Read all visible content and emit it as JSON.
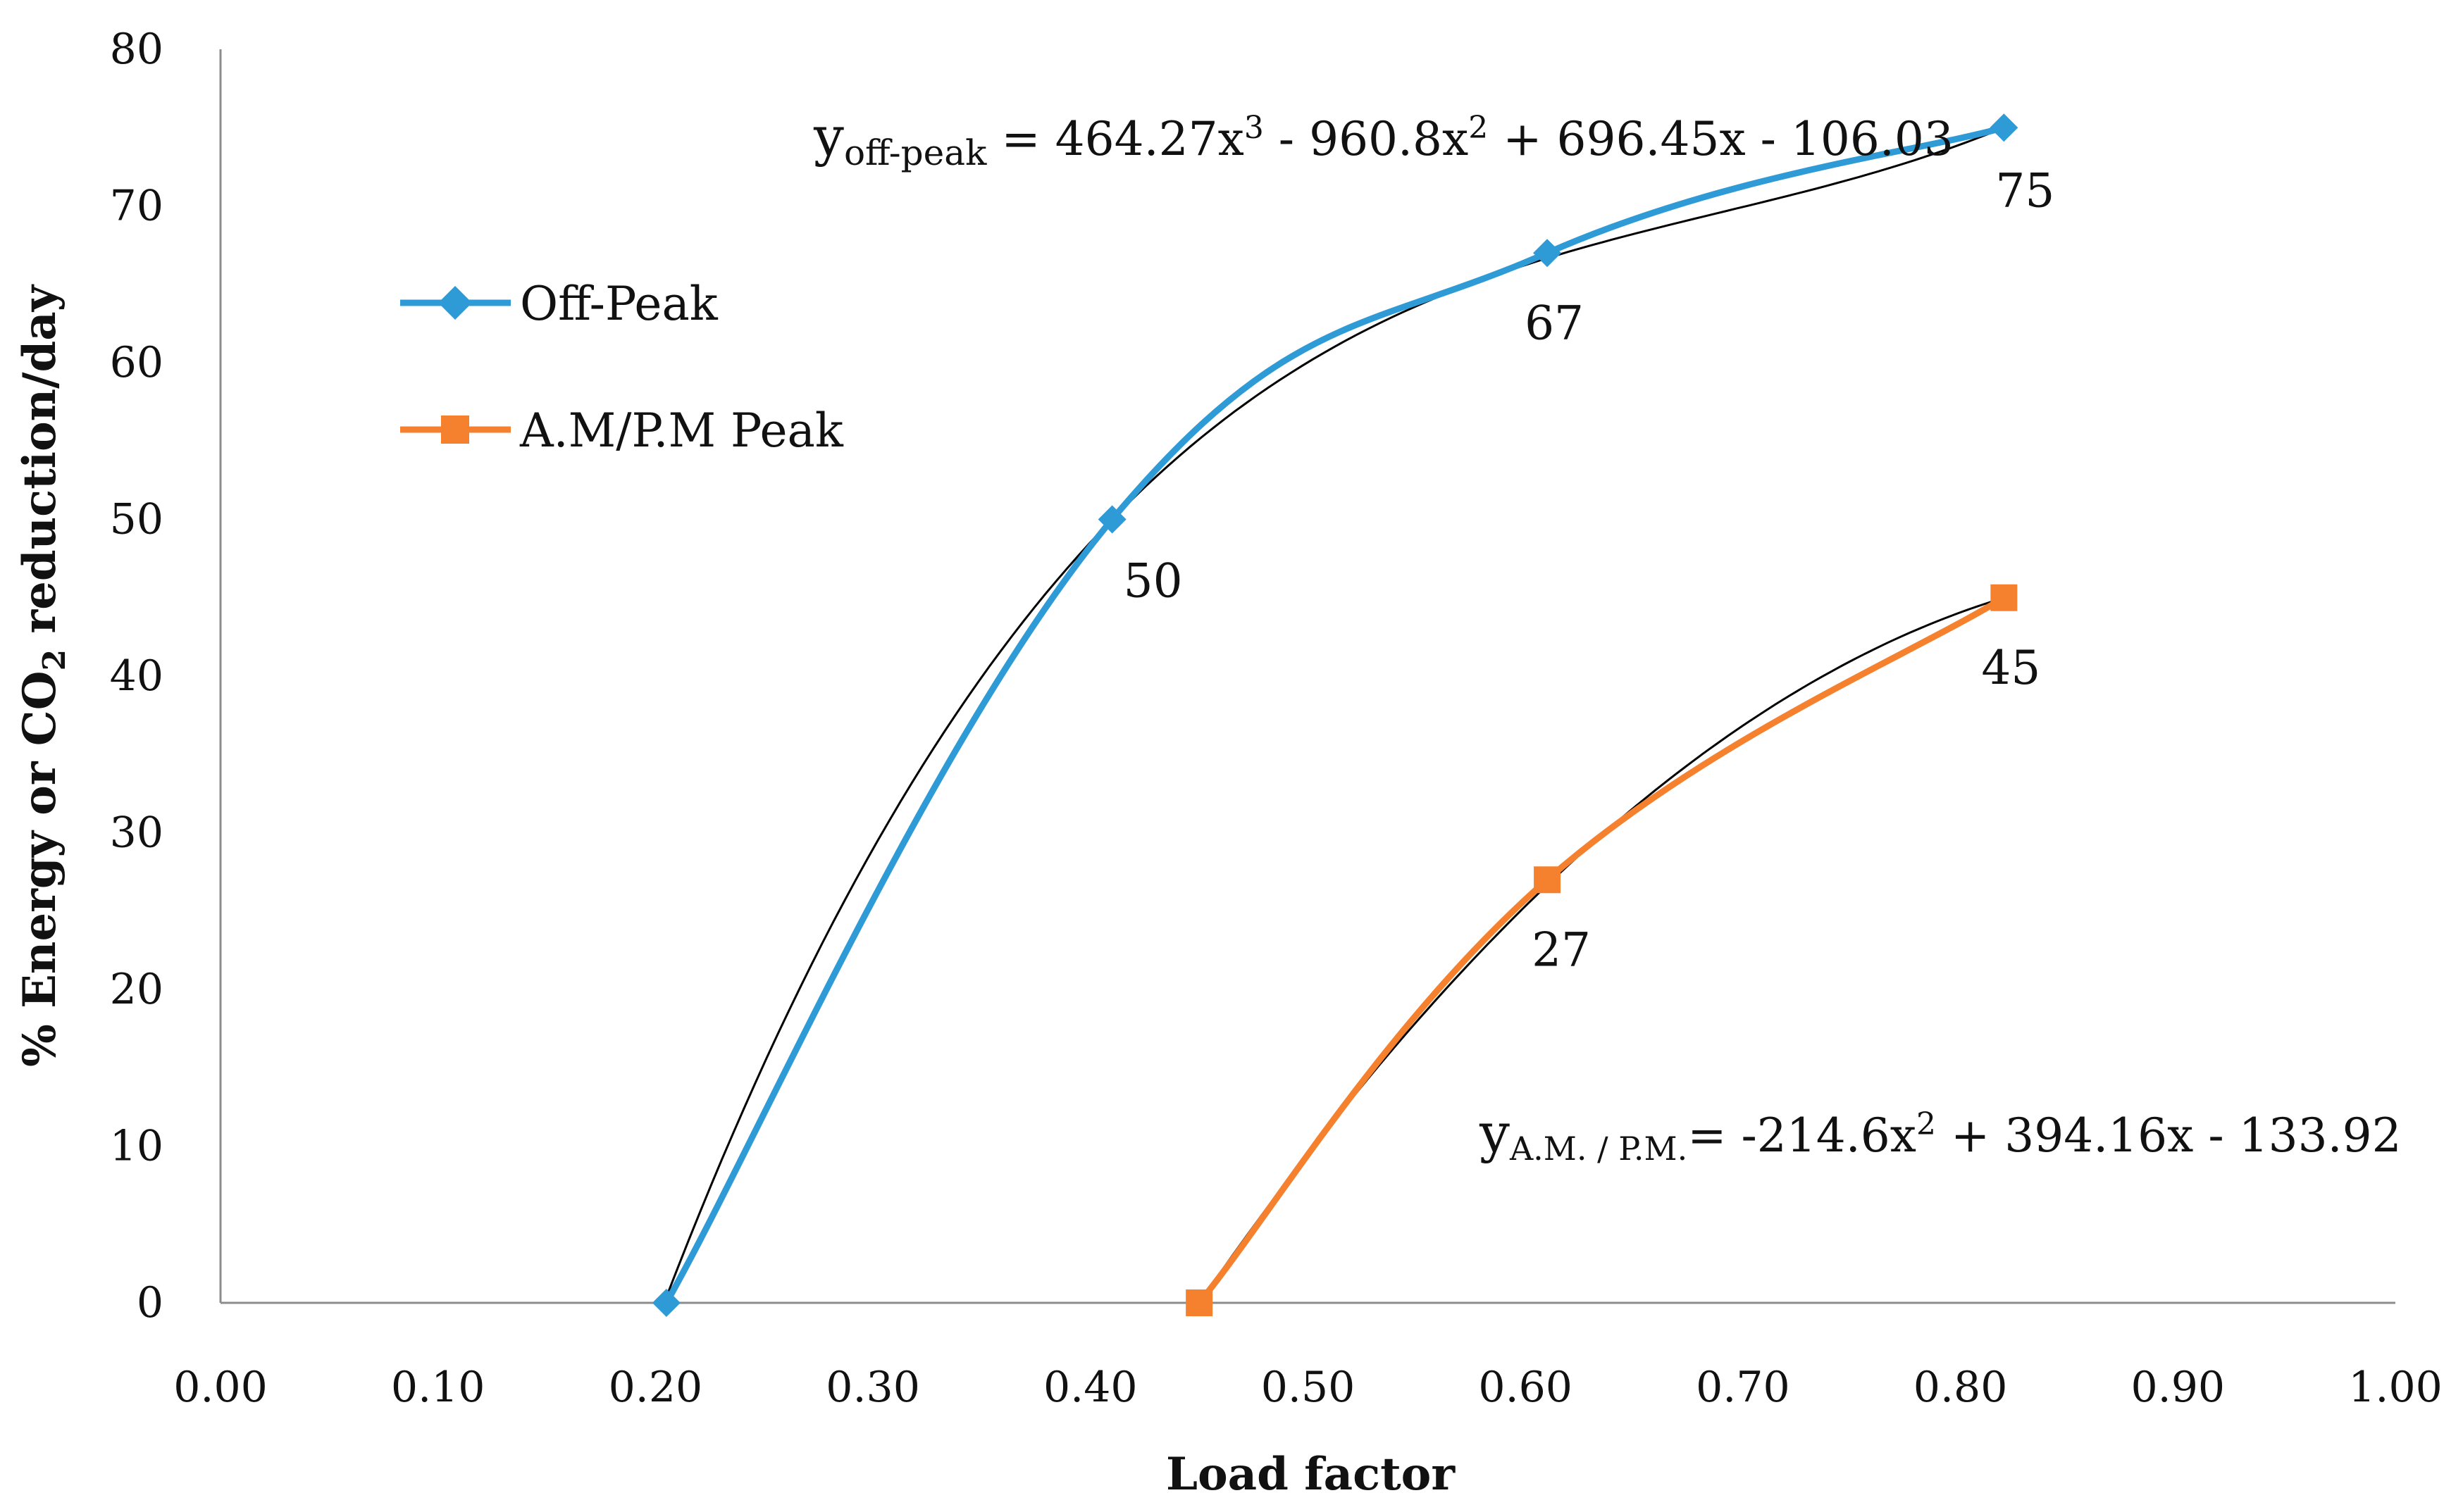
{
  "chart_data": {
    "type": "line",
    "title": "",
    "xlabel": "Load factor",
    "ylabel": {
      "prefix": "% Energy or CO",
      "subscript": "2",
      "suffix": " reduction/day"
    },
    "xlim": [
      0.0,
      1.0
    ],
    "ylim": [
      0,
      80
    ],
    "x_ticks": [
      "0.00",
      "0.10",
      "0.20",
      "0.30",
      "0.40",
      "0.50",
      "0.60",
      "0.70",
      "0.80",
      "0.90",
      "1.00"
    ],
    "y_ticks": [
      "0",
      "10",
      "20",
      "30",
      "40",
      "50",
      "60",
      "70",
      "80"
    ],
    "grid": false,
    "legend_position": "left",
    "series": [
      {
        "name": "Off-Peak",
        "color": "#2E9AD6",
        "marker": "diamond",
        "x": [
          0.205,
          0.41,
          0.61,
          0.82
        ],
        "values": [
          0,
          50,
          67,
          75
        ],
        "data_labels": [
          "",
          "50",
          "67",
          "75"
        ]
      },
      {
        "name": "A.M/P.M Peak",
        "color": "#F5812F",
        "marker": "square",
        "x": [
          0.45,
          0.61,
          0.82
        ],
        "values": [
          0,
          27,
          45
        ],
        "data_labels": [
          "",
          "27",
          "45"
        ]
      }
    ],
    "trendlines": [
      {
        "series": "Off-Peak",
        "color": "#000000",
        "coefficients": [
          464.27,
          -960.8,
          696.45,
          -106.03
        ],
        "x_range": [
          0.205,
          0.82
        ],
        "equation": {
          "lhs": "y",
          "lhs_sub": "off-peak",
          "t1": " = 464.27x",
          "s1": "3",
          "t2": " - 960.8x",
          "s2": "2",
          "t3": " + 696.45x - 106.03"
        }
      },
      {
        "series": "A.M/P.M Peak",
        "color": "#000000",
        "coefficients": [
          -214.6,
          394.16,
          -133.92
        ],
        "x_range": [
          0.45,
          0.82
        ],
        "equation": {
          "lhs": "y",
          "lhs_sub": "A.M. / P.M.",
          "t1": "= -214.6x",
          "s1": "2",
          "t2": " + 394.16x - 133.92"
        }
      }
    ]
  }
}
